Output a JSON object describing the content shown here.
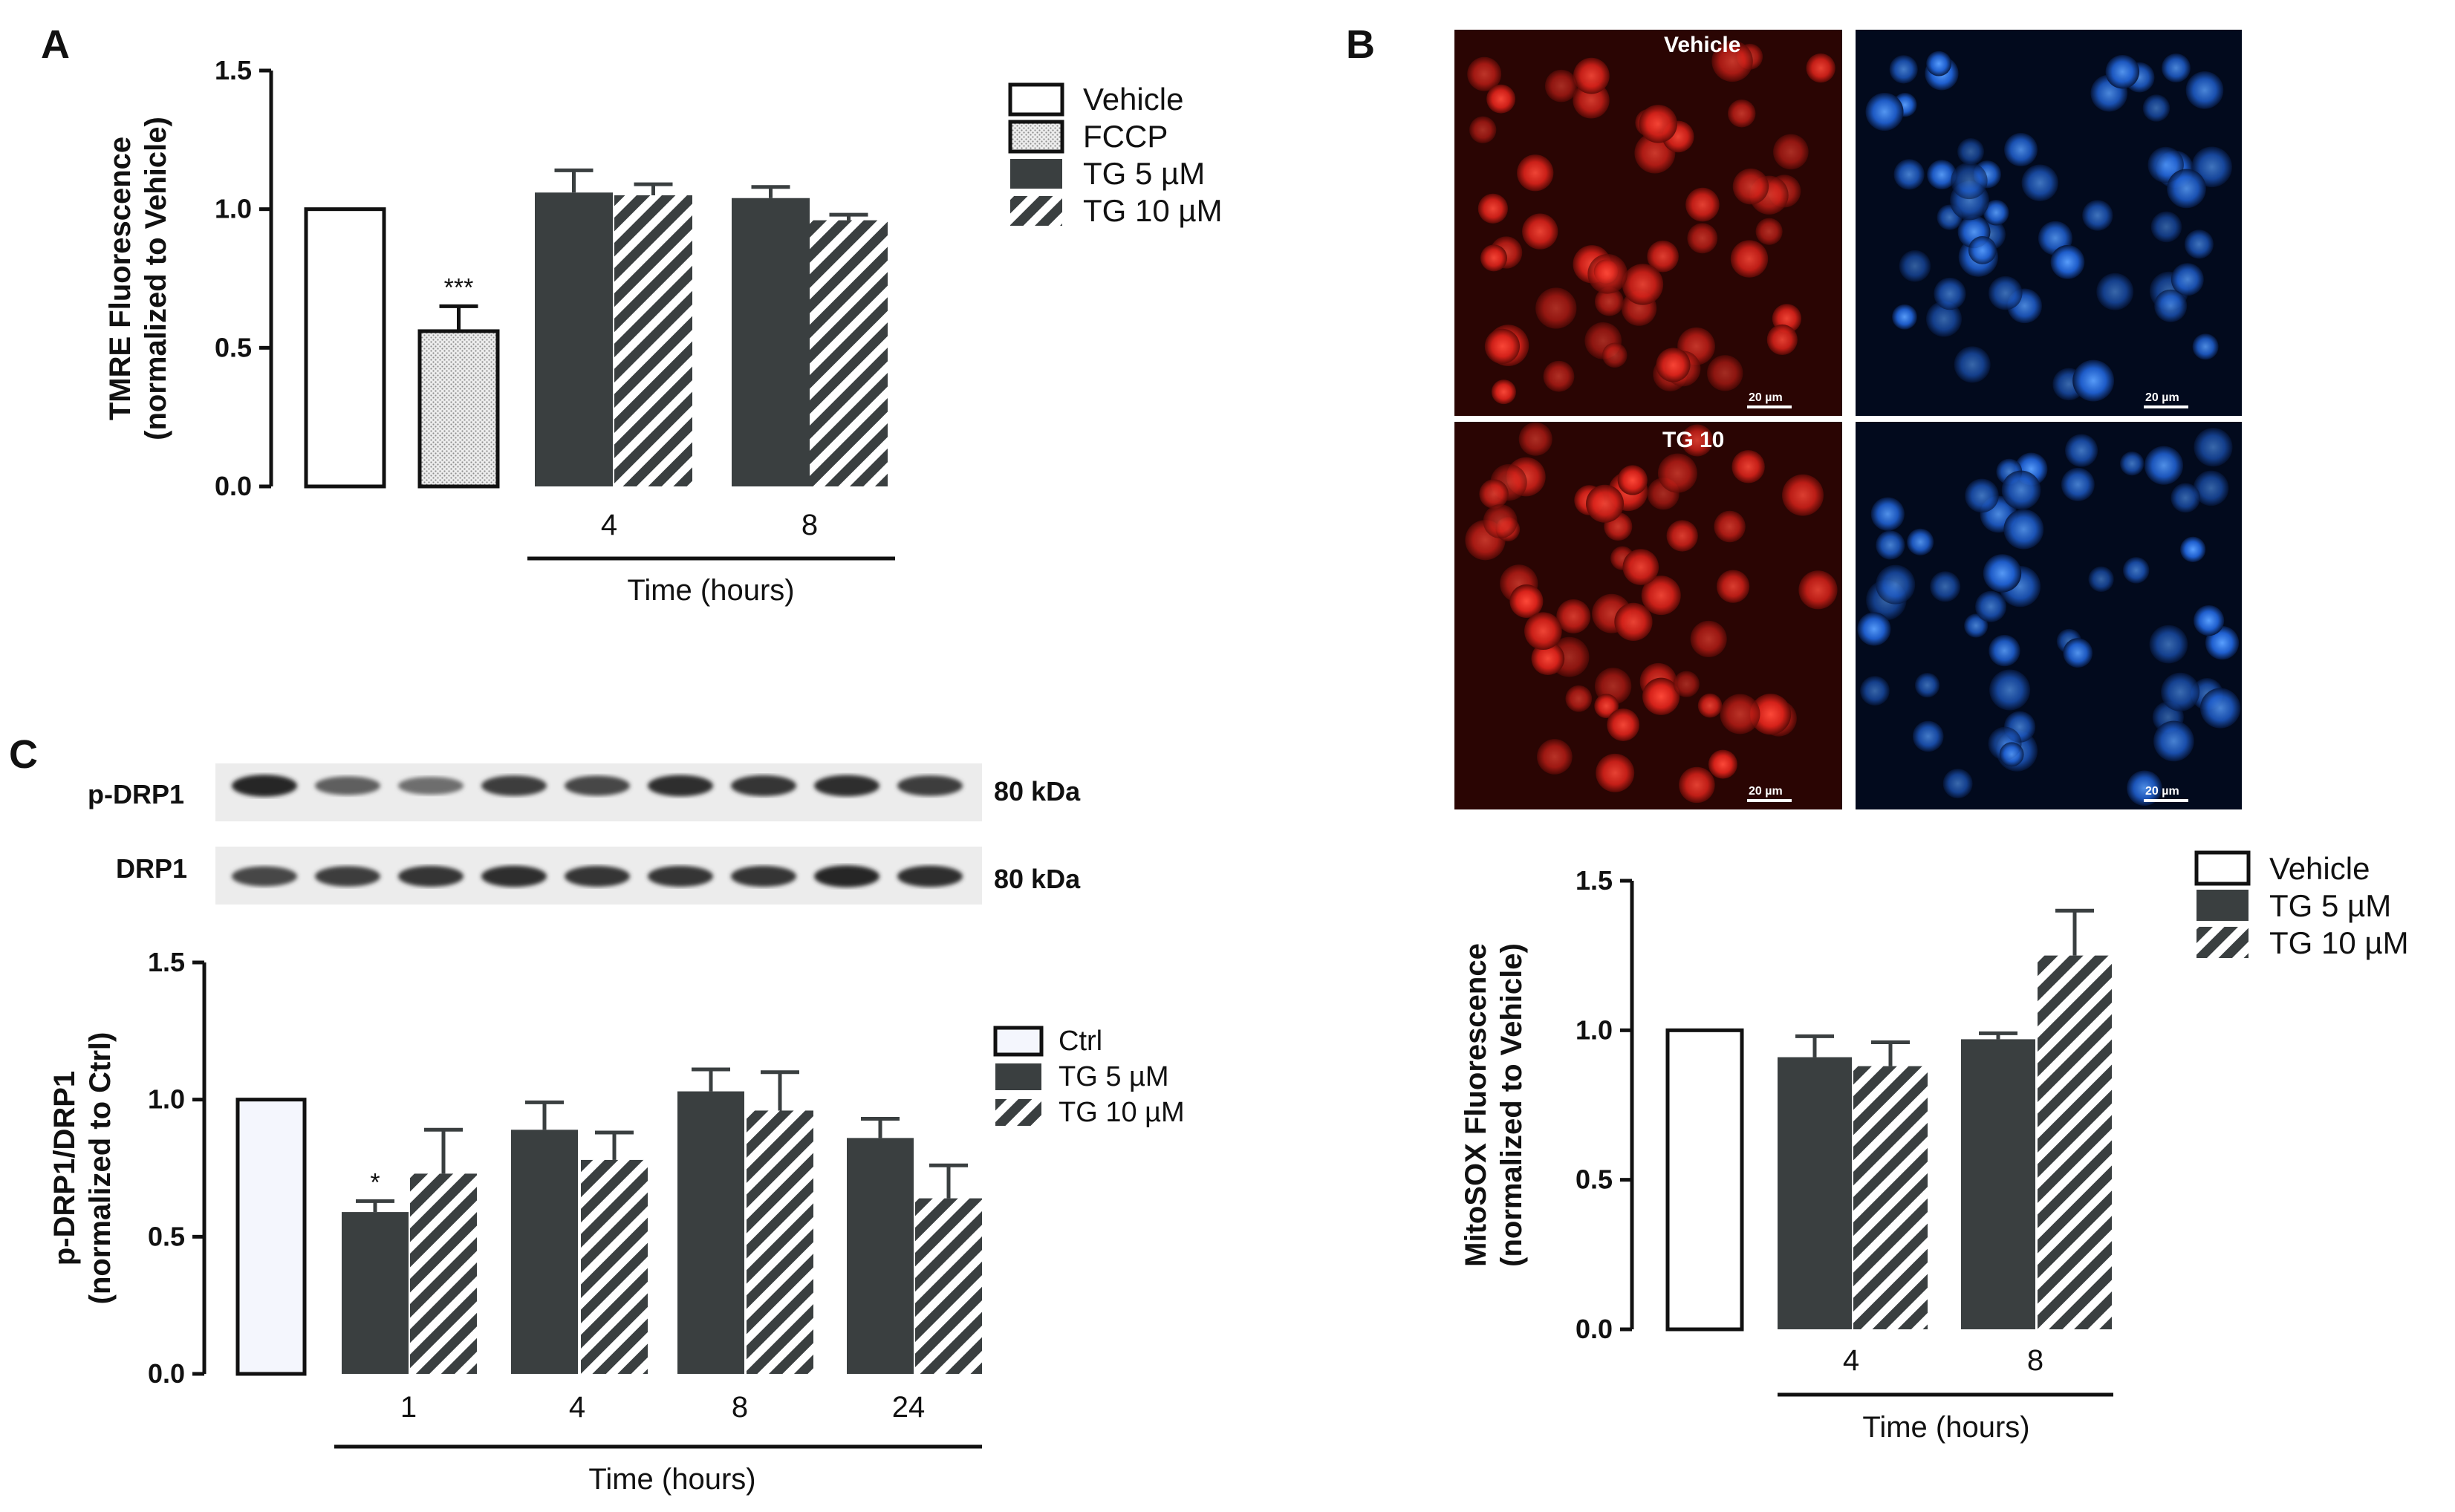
{
  "colors": {
    "tg5": "#3a3f40",
    "vehicle_fill": "#ffffff",
    "ctrl_fill": "#f4f6fd",
    "fccp_fill": "#cfcfcf",
    "red_stain": "#e0241c",
    "blue_stain": "#1f6fe0",
    "micro_bg_red": "#2a0503",
    "micro_bg_blue": "#020a1d"
  },
  "panels": {
    "a": {
      "letter": "A"
    },
    "b": {
      "letter": "B"
    },
    "c": {
      "letter": "C"
    }
  },
  "microscopy": {
    "vehicle_label": "Vehicle",
    "tg_label": "TG 10",
    "scale_bar_label": "20 µm",
    "icons": [
      "tmre-red-fluorescence",
      "hoechst-blue-fluorescence"
    ]
  },
  "western_blot": {
    "rows": [
      {
        "label": "p-DRP1",
        "kda": "80 kDa",
        "band_intensity": [
          0.95,
          0.6,
          0.5,
          0.8,
          0.75,
          0.9,
          0.85,
          0.9,
          0.8
        ]
      },
      {
        "label": "DRP1",
        "kda": "80 kDa",
        "band_intensity": [
          0.75,
          0.8,
          0.85,
          0.9,
          0.85,
          0.85,
          0.85,
          0.95,
          0.9
        ]
      }
    ]
  },
  "chart_data": [
    {
      "id": "A",
      "type": "bar",
      "ylabel_line1": "TMRE Fluorescence",
      "ylabel_line2": "(normalized to Vehicle)",
      "xlabel": "Time (hours)",
      "ylim": [
        0,
        1.5
      ],
      "yticks": [
        "0.0",
        "0.5",
        "1.0",
        "1.5"
      ],
      "groups": [
        "",
        "4",
        "8"
      ],
      "legend": [
        "Vehicle",
        "FCCP",
        "TG 5 µM",
        "TG 10 µM"
      ],
      "bars": [
        {
          "series": "Vehicle",
          "group": 0,
          "value": 1.0,
          "error": 0
        },
        {
          "series": "FCCP",
          "group": 0,
          "value": 0.56,
          "error": 0.09,
          "significance": "***"
        },
        {
          "series": "TG 5 µM",
          "group": 1,
          "value": 1.06,
          "error": 0.08
        },
        {
          "series": "TG 10 µM",
          "group": 1,
          "value": 1.05,
          "error": 0.04
        },
        {
          "series": "TG 5 µM",
          "group": 2,
          "value": 1.04,
          "error": 0.04
        },
        {
          "series": "TG 10 µM",
          "group": 2,
          "value": 0.96,
          "error": 0.02
        }
      ]
    },
    {
      "id": "B",
      "type": "bar",
      "ylabel_line1": "MitoSOX Fluorescence",
      "ylabel_line2": "(normalized to Vehicle)",
      "xlabel": "Time (hours)",
      "ylim": [
        0,
        1.5
      ],
      "yticks": [
        "0.0",
        "0.5",
        "1.0",
        "1.5"
      ],
      "groups": [
        "",
        "4",
        "8"
      ],
      "legend": [
        "Vehicle",
        "TG 5 µM",
        "TG 10 µM"
      ],
      "bars": [
        {
          "series": "Vehicle",
          "group": 0,
          "value": 1.0,
          "error": 0
        },
        {
          "series": "TG 5 µM",
          "group": 1,
          "value": 0.91,
          "error": 0.07
        },
        {
          "series": "TG 10 µM",
          "group": 1,
          "value": 0.88,
          "error": 0.08
        },
        {
          "series": "TG 5 µM",
          "group": 2,
          "value": 0.97,
          "error": 0.02
        },
        {
          "series": "TG 10 µM",
          "group": 2,
          "value": 1.25,
          "error": 0.15
        }
      ]
    },
    {
      "id": "C",
      "type": "bar",
      "ylabel_line1": "p-DRP1/DRP1",
      "ylabel_line2": "(normalized to Ctrl)",
      "xlabel": "Time (hours)",
      "ylim": [
        0,
        1.5
      ],
      "yticks": [
        "0.0",
        "0.5",
        "1.0",
        "1.5"
      ],
      "groups": [
        "",
        "1",
        "4",
        "8",
        "24"
      ],
      "legend": [
        "Ctrl",
        "TG 5 µM",
        "TG 10 µM"
      ],
      "bars": [
        {
          "series": "Ctrl",
          "group": 0,
          "value": 1.0,
          "error": 0
        },
        {
          "series": "TG 5 µM",
          "group": 1,
          "value": 0.59,
          "error": 0.04,
          "significance": "*"
        },
        {
          "series": "TG 10 µM",
          "group": 1,
          "value": 0.73,
          "error": 0.16
        },
        {
          "series": "TG 5 µM",
          "group": 2,
          "value": 0.89,
          "error": 0.1
        },
        {
          "series": "TG 10 µM",
          "group": 2,
          "value": 0.78,
          "error": 0.1
        },
        {
          "series": "TG 5 µM",
          "group": 3,
          "value": 1.03,
          "error": 0.08
        },
        {
          "series": "TG 10 µM",
          "group": 3,
          "value": 0.96,
          "error": 0.14
        },
        {
          "series": "TG 5 µM",
          "group": 4,
          "value": 0.86,
          "error": 0.07
        },
        {
          "series": "TG 10 µM",
          "group": 4,
          "value": 0.64,
          "error": 0.12
        }
      ]
    }
  ]
}
